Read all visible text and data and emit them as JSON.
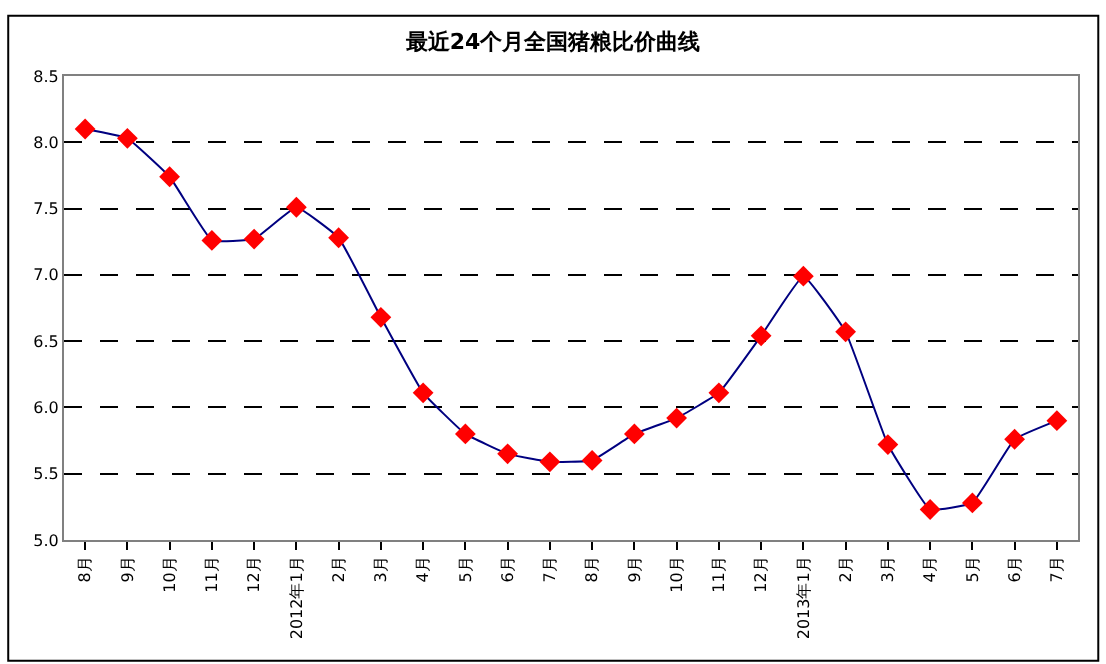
{
  "chart_data": {
    "type": "line",
    "title": "最近24个月全国猪粮比价曲线",
    "categories": [
      "8月",
      "9月",
      "10月",
      "11月",
      "12月",
      "2012年1月",
      "2月",
      "3月",
      "4月",
      "5月",
      "6月",
      "7月",
      "8月",
      "9月",
      "10月",
      "11月",
      "12月",
      "2013年1月",
      "2月",
      "3月",
      "4月",
      "5月",
      "6月",
      "7月"
    ],
    "series": [
      {
        "color": "#000080",
        "colors": [
          "#ff0000",
          "#ff0000",
          "#ff0000",
          "#ff0000",
          "#ff0000",
          "#ff0000",
          "#ff0000",
          "#ff0000",
          "#ff0000",
          "#ff0000",
          "#ff0000",
          "#ff0000",
          "#ff0000",
          "#ff0000",
          "#ff0000",
          "#ff0000",
          "#ff0000",
          "#ff0000",
          "#ff0000",
          "#ff0000",
          "#ff0000",
          "#ff0000",
          "#ff0000",
          "#ff0000"
        ],
        "values": [
          8.1,
          8.03,
          7.74,
          7.26,
          7.27,
          7.51,
          7.28,
          6.68,
          6.11,
          5.8,
          5.65,
          5.59,
          5.6,
          5.8,
          5.92,
          6.11,
          6.54,
          6.99,
          6.57,
          5.72,
          5.23,
          5.28,
          5.76,
          5.9
        ]
      }
    ],
    "ylim": [
      5.0,
      8.5
    ],
    "yticks": [
      {
        "value": 5.0,
        "label": "5.0"
      },
      {
        "value": 5.5,
        "label": "5.5"
      },
      {
        "value": 6.0,
        "label": "6.0"
      },
      {
        "value": 6.5,
        "label": "6.5"
      },
      {
        "value": 7.0,
        "label": "7.0"
      },
      {
        "value": 7.5,
        "label": "7.5"
      },
      {
        "value": 8.0,
        "label": "8.0"
      },
      {
        "value": 8.5,
        "label": "8.5"
      }
    ],
    "grid": "y",
    "marker": "diamond",
    "line_style": "solid",
    "legend": false
  }
}
